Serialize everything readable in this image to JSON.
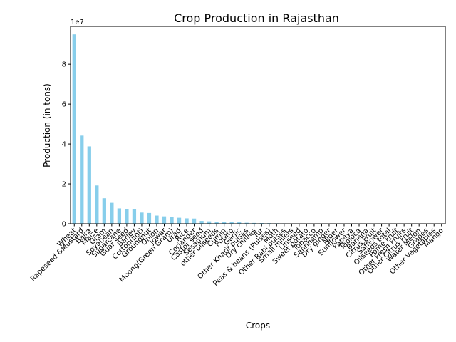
{
  "chart_data": {
    "type": "bar",
    "title": "Crop Production in Rajasthan",
    "xlabel": "Crops",
    "ylabel": "Production (in tons)",
    "y_scale_label": "1e7",
    "ylim": [
      0,
      99000000
    ],
    "yticks": [
      0,
      20000000,
      40000000,
      60000000,
      80000000
    ],
    "ytick_labels": [
      "0",
      "2",
      "4",
      "6",
      "8"
    ],
    "grid": false,
    "legend": "none",
    "bar_color": "#87CEEB",
    "categories": [
      "Wheat",
      "Rapeseed &Mustard",
      "Bajra",
      "Maize",
      "Gram",
      "Soyabean",
      "Sugarcane",
      "Guar seed",
      "Barley",
      "Cotton(lint)",
      "Groundnut",
      "Onion",
      "Jowar",
      "Moong(Green Gram)",
      "Urad",
      "Rice",
      "Coriander",
      "Castor seed",
      "Sesamum",
      "other oilseeds",
      "Cumin",
      "Potato",
      "Garlic",
      "Other Kharif pulses",
      "Dry chillies",
      "Tur",
      "Peas & beans (Pulses)",
      "Moth",
      "Other Rabi pulses",
      "Small millets",
      "Linseed",
      "Sweet potato",
      "Tobacco",
      "Sannhamp",
      "Dry ginger",
      "Niger",
      "Sunflower",
      "Papaya",
      "Tapioca",
      "Banana",
      "Citrus Fruit",
      "Safflower",
      "Oilseeds total",
      "Pome Fruit",
      "Other Fresh Fruits",
      "Other Citrus Fruit",
      "Water Melon",
      "Grapes",
      "Other Vegetables",
      "Mango"
    ],
    "values": [
      95000000,
      44200000,
      38800000,
      19200000,
      12800000,
      10500000,
      7700000,
      7400000,
      7400000,
      5600000,
      5400000,
      4100000,
      3700000,
      3400000,
      3000000,
      2700000,
      2600000,
      1400000,
      1200000,
      1000000,
      900000,
      800000,
      700000,
      500000,
      400000,
      350000,
      300000,
      250000,
      200000,
      150000,
      120000,
      100000,
      80000,
      70000,
      60000,
      50000,
      40000,
      35000,
      30000,
      25000,
      20000,
      15000,
      12000,
      10000,
      8000,
      6000,
      5000,
      4000,
      3000,
      2000
    ]
  }
}
